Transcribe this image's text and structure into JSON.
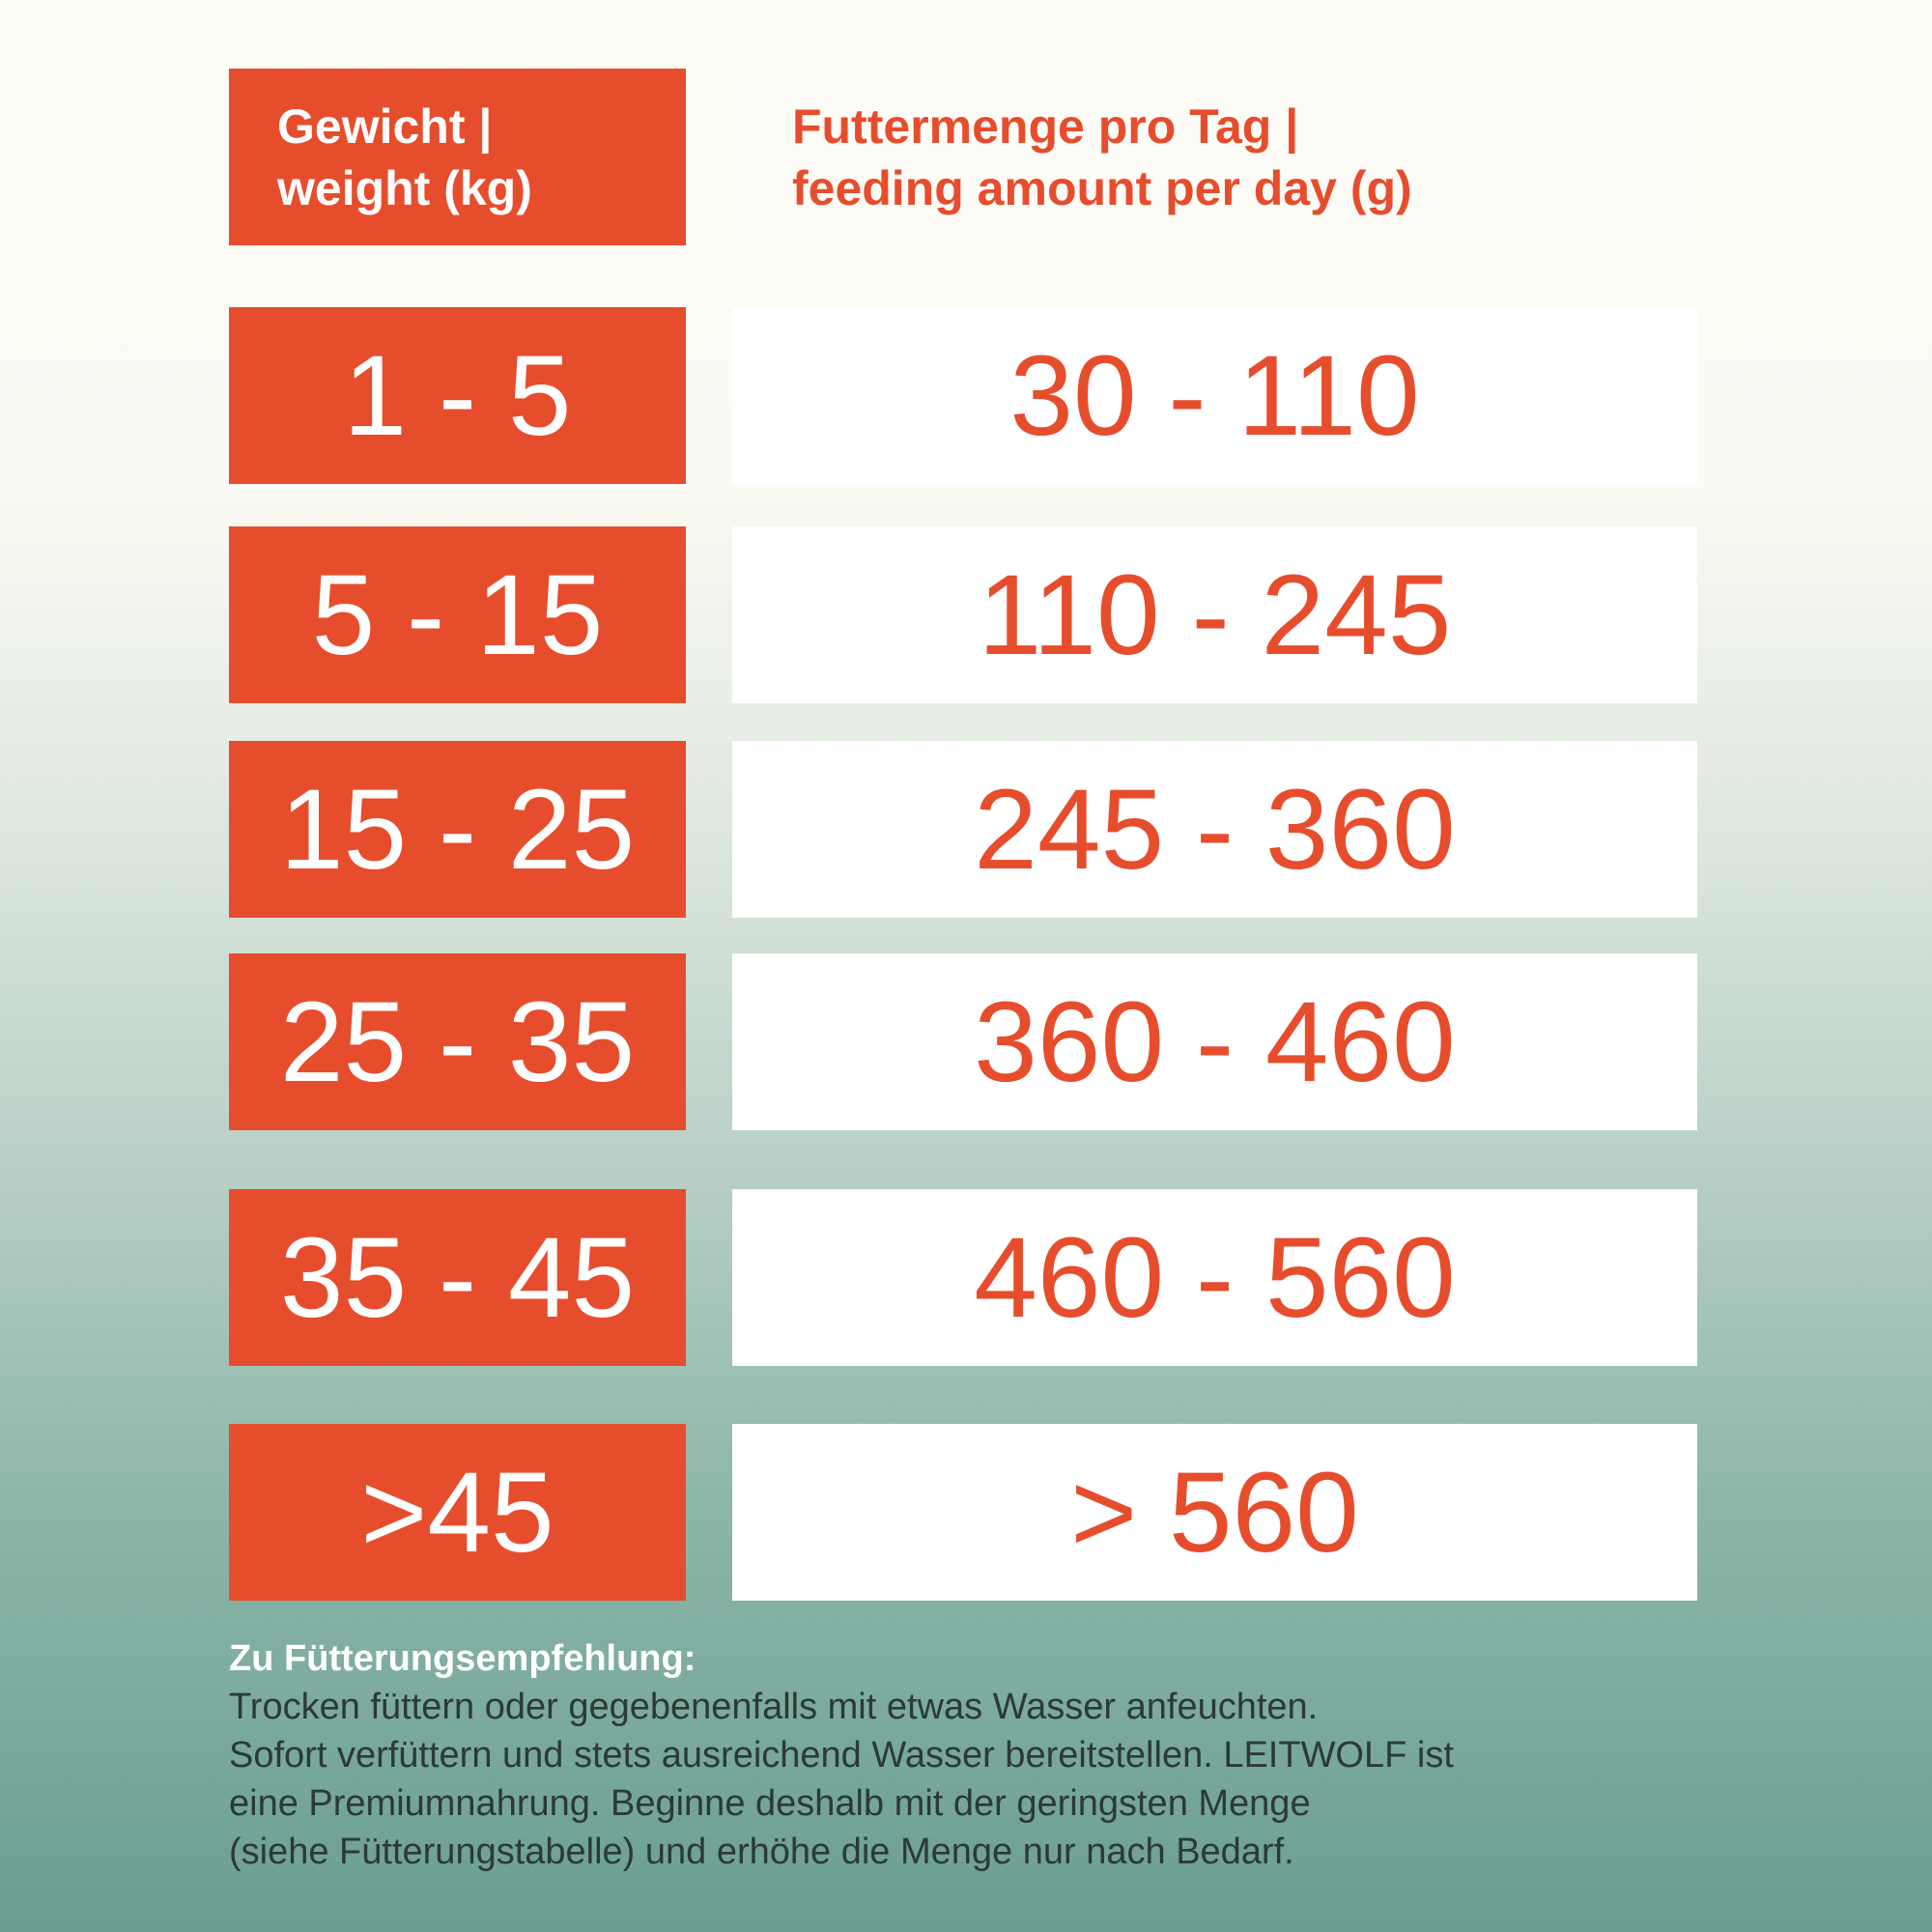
{
  "header": {
    "weight": [
      "Gewicht |",
      "weight (kg)"
    ],
    "feeding": [
      "Futtermenge pro Tag |",
      "feeding amount per day (g)"
    ]
  },
  "table": {
    "rows": [
      [
        "1 - 5",
        "30 - 110"
      ],
      [
        "5 - 15",
        "110 - 245"
      ],
      [
        "15 - 25",
        "245 - 360"
      ],
      [
        "25 - 35",
        "360 - 460"
      ],
      [
        "35 - 45",
        "460 - 560"
      ],
      [
        ">45",
        "> 560"
      ]
    ]
  },
  "note": {
    "title": "Zu Fütterungsempfehlung:",
    "lines": [
      "Trocken füttern oder gegebenenfalls mit etwas Wasser anfeuchten.",
      "Sofort verfüttern und stets ausreichend Wasser bereitstellen. LEITWOLF ist",
      "eine Premiumnahrung. Beginne deshalb mit der geringsten Menge",
      "(siehe Fütterungstabelle) und erhöhe die Menge nur nach Bedarf."
    ]
  }
}
